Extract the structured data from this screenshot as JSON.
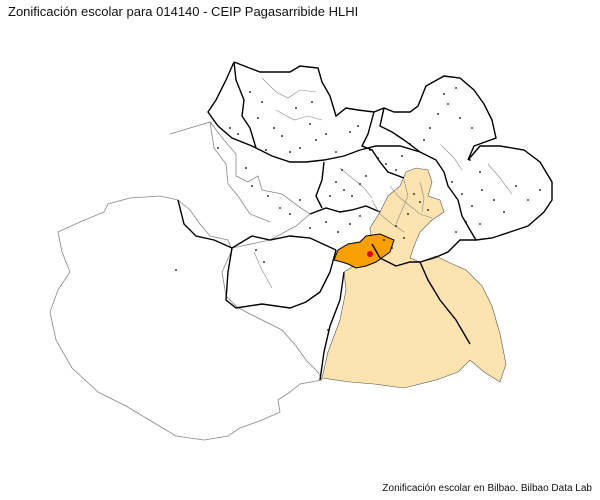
{
  "title": "Zonificación escolar para 014140 - CEIP Pagasarribide HLHI",
  "caption": "Zonificación escolar en Bilbao. Bilbao Data Lab",
  "colors": {
    "zone_fill": "#fde3b0",
    "school_area_fill": "#f7a000",
    "school_marker": "#e00000",
    "district_border": "#000000",
    "neighborhood_border": "#888888",
    "background": "#ffffff"
  }
}
